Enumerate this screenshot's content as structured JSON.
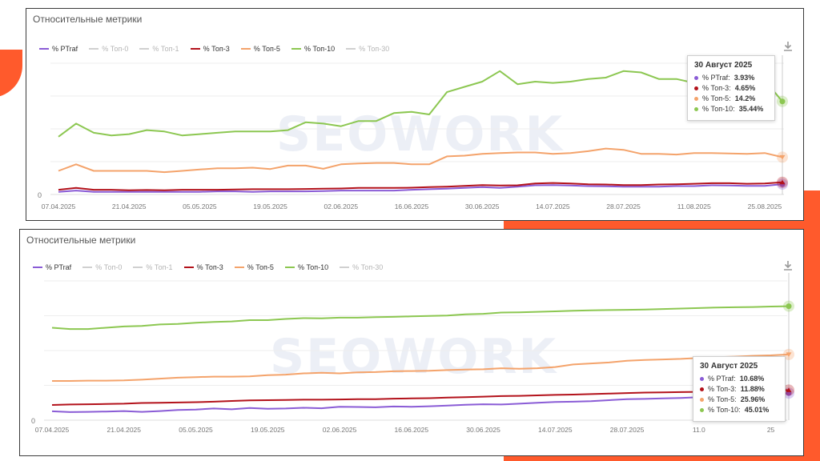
{
  "colors": {
    "accent": "#ff5a2c",
    "ptraf": "#8a5cd6",
    "top0": "#cccccc",
    "top1": "#cccccc",
    "top3": "#b3121b",
    "top5": "#f4a36b",
    "top10": "#8cc751",
    "top30": "#cccccc"
  },
  "watermark": "SEOWORK",
  "charts": [
    {
      "title": "Относительные метрики",
      "legend": [
        "% PTraf",
        "% Топ-0",
        "% Топ-1",
        "% Топ-3",
        "% Топ-5",
        "% Топ-10",
        "% Топ-30"
      ],
      "tooltip": {
        "date": "30 Август 2025",
        "rows": [
          {
            "label": "% PTraf:",
            "value": "3.93%"
          },
          {
            "label": "% Топ-3:",
            "value": "4.65%"
          },
          {
            "label": "% Топ-5:",
            "value": "14.2%"
          },
          {
            "label": "% Топ-10:",
            "value": "35.44%"
          }
        ]
      }
    },
    {
      "title": "Относительные метрики",
      "legend": [
        "% PTraf",
        "% Топ-0",
        "% Топ-1",
        "% Топ-3",
        "% Топ-5",
        "% Топ-10",
        "% Топ-30"
      ],
      "tooltip": {
        "date": "30 Август 2025",
        "rows": [
          {
            "label": "% PTraf:",
            "value": "10.68%"
          },
          {
            "label": "% Топ-3:",
            "value": "11.88%"
          },
          {
            "label": "% Топ-5:",
            "value": "25.96%"
          },
          {
            "label": "% Топ-10:",
            "value": "45.01%"
          }
        ]
      }
    }
  ],
  "chart_data": [
    {
      "type": "line",
      "title": "Относительные метрики",
      "x": [
        "07.04.2025",
        "10.04.2025",
        "14.04.2025",
        "17.04.2025",
        "21.04.2025",
        "24.04.2025",
        "28.04.2025",
        "01.05.2025",
        "05.05.2025",
        "08.05.2025",
        "12.05.2025",
        "15.05.2025",
        "19.05.2025",
        "22.05.2025",
        "26.05.2025",
        "29.05.2025",
        "02.06.2025",
        "05.06.2025",
        "09.06.2025",
        "12.06.2025",
        "16.06.2025",
        "19.06.2025",
        "23.06.2025",
        "26.06.2025",
        "30.06.2025",
        "03.07.2025",
        "07.07.2025",
        "10.07.2025",
        "14.07.2025",
        "17.07.2025",
        "21.07.2025",
        "24.07.2025",
        "28.07.2025",
        "31.07.2025",
        "04.08.2025",
        "07.08.2025",
        "11.08.2025",
        "14.08.2025",
        "18.08.2025",
        "21.08.2025",
        "25.08.2025",
        "30.08.2025"
      ],
      "x_ticks": [
        "07.04.2025",
        "21.04.2025",
        "05.05.2025",
        "19.05.2025",
        "02.06.2025",
        "16.06.2025",
        "30.06.2025",
        "14.07.2025",
        "28.07.2025",
        "11.08.2025",
        "25.08.2025"
      ],
      "y_ticks": [
        "0"
      ],
      "ylim": [
        0,
        50
      ],
      "series": [
        {
          "name": "% PTraf",
          "color": "#8a5cd6",
          "values": [
            1,
            1.5,
            1,
            1,
            1,
            1,
            1,
            1,
            1,
            1.2,
            1.2,
            1,
            1.2,
            1.2,
            1.2,
            1.3,
            1.5,
            1.5,
            1.5,
            1.5,
            1.8,
            2,
            2.2,
            2.5,
            2.8,
            2.5,
            3,
            3.5,
            3.6,
            3.4,
            3.2,
            3.1,
            3,
            3,
            3,
            3.2,
            3.2,
            3.5,
            3.4,
            3.3,
            3.3,
            3.93
          ]
        },
        {
          "name": "% Топ-3",
          "color": "#b3121b",
          "values": [
            1.8,
            2.5,
            1.8,
            1.8,
            1.6,
            1.7,
            1.6,
            1.8,
            1.8,
            1.8,
            1.9,
            2,
            2,
            2,
            2.1,
            2.2,
            2.3,
            2.5,
            2.5,
            2.5,
            2.6,
            2.8,
            3,
            3.3,
            3.6,
            3.4,
            3.5,
            4.2,
            4.4,
            4.2,
            3.9,
            3.8,
            3.6,
            3.6,
            3.8,
            3.9,
            4.1,
            4.3,
            4.3,
            4.1,
            4.2,
            4.65
          ]
        },
        {
          "name": "% Топ-5",
          "color": "#f4a36b",
          "values": [
            9,
            11.5,
            9,
            9,
            9,
            9,
            8.5,
            9,
            9.5,
            10,
            10,
            10.2,
            9.7,
            11,
            11,
            9.8,
            11.5,
            11.8,
            12,
            12,
            11.5,
            11.5,
            14.5,
            14.8,
            15.5,
            15.8,
            16,
            16,
            15.5,
            15.8,
            16.5,
            17.5,
            17,
            15.5,
            15.5,
            15.2,
            15.8,
            15.8,
            15.6,
            15.5,
            15.8,
            14.2
          ]
        },
        {
          "name": "% Топ-10",
          "color": "#8cc751",
          "values": [
            22,
            27,
            23.5,
            22.5,
            23,
            24.5,
            24,
            22.5,
            23,
            23.5,
            24,
            24,
            24,
            24.5,
            27.5,
            27,
            26,
            28,
            28,
            31,
            31.5,
            30.5,
            39,
            41,
            43,
            47,
            42,
            43,
            42.5,
            43,
            44,
            44.5,
            47,
            46.5,
            44,
            44,
            42.5,
            42,
            42.5,
            43,
            43.5,
            35.44
          ]
        }
      ]
    },
    {
      "type": "line",
      "title": "Относительные метрики",
      "x": [
        "07.04.2025",
        "10.04.2025",
        "14.04.2025",
        "17.04.2025",
        "21.04.2025",
        "24.04.2025",
        "28.04.2025",
        "01.05.2025",
        "05.05.2025",
        "08.05.2025",
        "12.05.2025",
        "15.05.2025",
        "19.05.2025",
        "22.05.2025",
        "26.05.2025",
        "29.05.2025",
        "02.06.2025",
        "05.06.2025",
        "09.06.2025",
        "12.06.2025",
        "16.06.2025",
        "19.06.2025",
        "23.06.2025",
        "26.06.2025",
        "30.06.2025",
        "03.07.2025",
        "07.07.2025",
        "10.07.2025",
        "14.07.2025",
        "17.07.2025",
        "21.07.2025",
        "24.07.2025",
        "28.07.2025",
        "31.07.2025",
        "04.08.2025",
        "07.08.2025",
        "11.08.2025",
        "14.08.2025",
        "18.08.2025",
        "21.08.2025",
        "25.08.2025",
        "30.08.2025"
      ],
      "x_ticks": [
        "07.04.2025",
        "21.04.2025",
        "05.05.2025",
        "19.05.2025",
        "02.06.2025",
        "16.06.2025",
        "30.06.2025",
        "14.07.2025",
        "28.07.2025",
        "11.0",
        "25"
      ],
      "y_ticks": [
        "0"
      ],
      "ylim": [
        0,
        55
      ],
      "series": [
        {
          "name": "% PTraf",
          "color": "#8a5cd6",
          "values": [
            3.5,
            3.2,
            3.3,
            3.4,
            3.6,
            3.3,
            3.6,
            4,
            4.2,
            4.6,
            4.3,
            4.8,
            4.5,
            4.6,
            4.9,
            4.7,
            5.3,
            5.2,
            5.1,
            5.4,
            5.3,
            5.5,
            5.8,
            6.1,
            6.3,
            6.2,
            6.5,
            6.9,
            7.2,
            7.3,
            7.5,
            7.9,
            8.3,
            8.4,
            8.6,
            8.8,
            9.1,
            9.4,
            9.6,
            9.9,
            10.2,
            10.68
          ]
        },
        {
          "name": "% Топ-3",
          "color": "#b3121b",
          "values": [
            6,
            6.2,
            6.3,
            6.4,
            6.5,
            6.8,
            6.9,
            7,
            7.1,
            7.3,
            7.6,
            7.8,
            7.9,
            8,
            8.1,
            8.1,
            8.2,
            8.3,
            8.3,
            8.5,
            8.6,
            8.7,
            8.9,
            9.1,
            9.3,
            9.5,
            9.6,
            9.8,
            10,
            10.1,
            10.3,
            10.5,
            10.7,
            10.9,
            11,
            11.1,
            11.2,
            11.3,
            11.4,
            11.5,
            11.7,
            11.88
          ]
        },
        {
          "name": "% Топ-5",
          "color": "#f4a36b",
          "values": [
            15.5,
            15.5,
            15.6,
            15.6,
            15.7,
            16,
            16.4,
            16.8,
            17,
            17.2,
            17.2,
            17.3,
            17.8,
            18,
            18.5,
            18.7,
            18.5,
            18.9,
            19,
            19.3,
            19.4,
            19.5,
            19.8,
            20,
            20.1,
            20.5,
            20.3,
            20.5,
            21,
            22,
            22.4,
            22.8,
            23.5,
            23.8,
            24,
            24.2,
            24.6,
            24.9,
            25.1,
            25.4,
            25.6,
            25.96
          ]
        },
        {
          "name": "% Топ-10",
          "color": "#8cc751",
          "values": [
            36.5,
            36,
            36,
            36.5,
            37,
            37.2,
            37.8,
            38,
            38.5,
            38.8,
            39,
            39.5,
            39.5,
            40,
            40.3,
            40.2,
            40.5,
            40.5,
            40.7,
            40.8,
            41,
            41.2,
            41.3,
            41.8,
            42,
            42.5,
            42.6,
            42.8,
            43,
            43.2,
            43.4,
            43.5,
            43.6,
            43.7,
            43.9,
            44.1,
            44.3,
            44.5,
            44.6,
            44.7,
            44.9,
            45.01
          ]
        }
      ]
    }
  ]
}
